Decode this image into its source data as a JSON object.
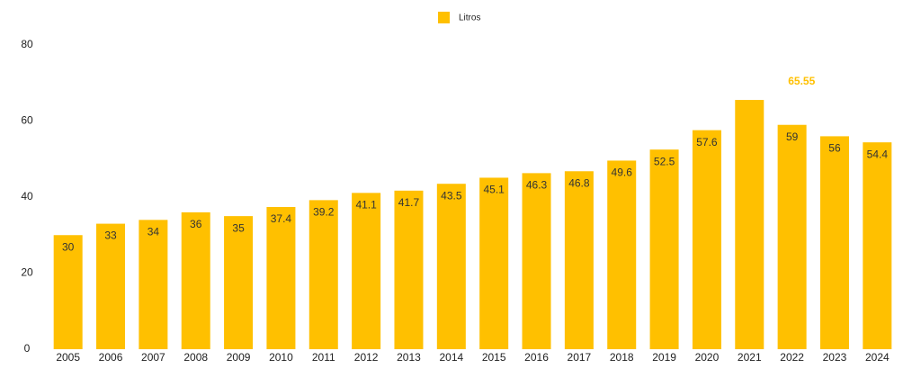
{
  "chart_data": {
    "type": "bar",
    "categories": [
      "2005",
      "2006",
      "2007",
      "2008",
      "2009",
      "2010",
      "2011",
      "2012",
      "2013",
      "2014",
      "2015",
      "2016",
      "2017",
      "2018",
      "2019",
      "2020",
      "2021",
      "2022",
      "2023",
      "2024"
    ],
    "series": [
      {
        "name": "Litros",
        "color": "#FFC000",
        "values": [
          30,
          33,
          34,
          36,
          35,
          37.4,
          39.2,
          41.1,
          41.7,
          43.5,
          45.1,
          46.3,
          46.8,
          49.6,
          52.5,
          57.6,
          65.55,
          59,
          56,
          54.4
        ]
      }
    ],
    "ylim": [
      0,
      80
    ],
    "yticks": [
      0,
      20,
      40,
      60,
      80
    ],
    "grid": false,
    "legend": "top"
  }
}
